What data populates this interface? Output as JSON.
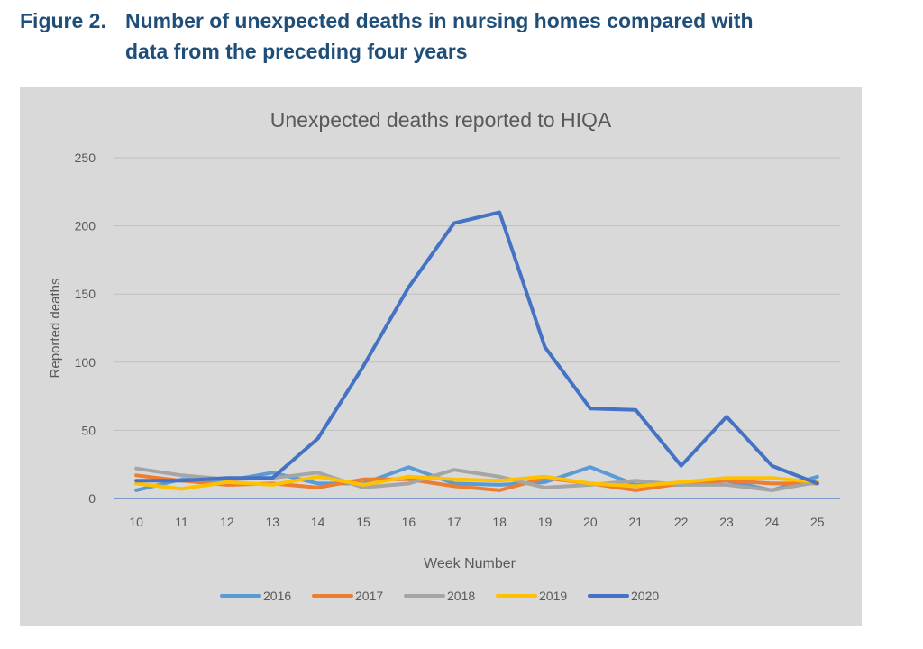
{
  "figure": {
    "number": "Figure 2.",
    "title_line1": "Number of unexpected deaths in nursing homes compared with",
    "title_line2": "data from the preceding four years"
  },
  "chart_data": {
    "type": "line",
    "title": "Unexpected deaths reported to HIQA",
    "xlabel": "Week Number",
    "ylabel": "Reported deaths",
    "ylim": [
      0,
      250
    ],
    "yticks": [
      0,
      50,
      100,
      150,
      200,
      250
    ],
    "x": [
      10,
      11,
      12,
      13,
      14,
      15,
      16,
      17,
      18,
      19,
      20,
      21,
      22,
      23,
      24,
      25
    ],
    "grid": true,
    "legend": "bottom",
    "series": [
      {
        "name": "2016",
        "color": "#5b9bd5",
        "values": [
          6,
          14,
          13,
          19,
          11,
          11,
          23,
          11,
          10,
          12,
          23,
          10,
          10,
          13,
          6,
          16
        ]
      },
      {
        "name": "2017",
        "color": "#ed7d31",
        "values": [
          17,
          13,
          10,
          11,
          8,
          14,
          14,
          9,
          6,
          15,
          11,
          6,
          11,
          13,
          11,
          11
        ]
      },
      {
        "name": "2018",
        "color": "#a5a5a5",
        "values": [
          22,
          17,
          14,
          15,
          19,
          8,
          11,
          21,
          16,
          8,
          10,
          13,
          10,
          10,
          6,
          12
        ]
      },
      {
        "name": "2019",
        "color": "#ffc000",
        "values": [
          11,
          7,
          12,
          10,
          16,
          10,
          16,
          14,
          13,
          16,
          11,
          9,
          12,
          15,
          15,
          12
        ]
      },
      {
        "name": "2020",
        "color": "#4472c4",
        "values": [
          13,
          13,
          15,
          15,
          44,
          97,
          155,
          202,
          210,
          111,
          66,
          65,
          24,
          60,
          24,
          11
        ]
      }
    ]
  }
}
